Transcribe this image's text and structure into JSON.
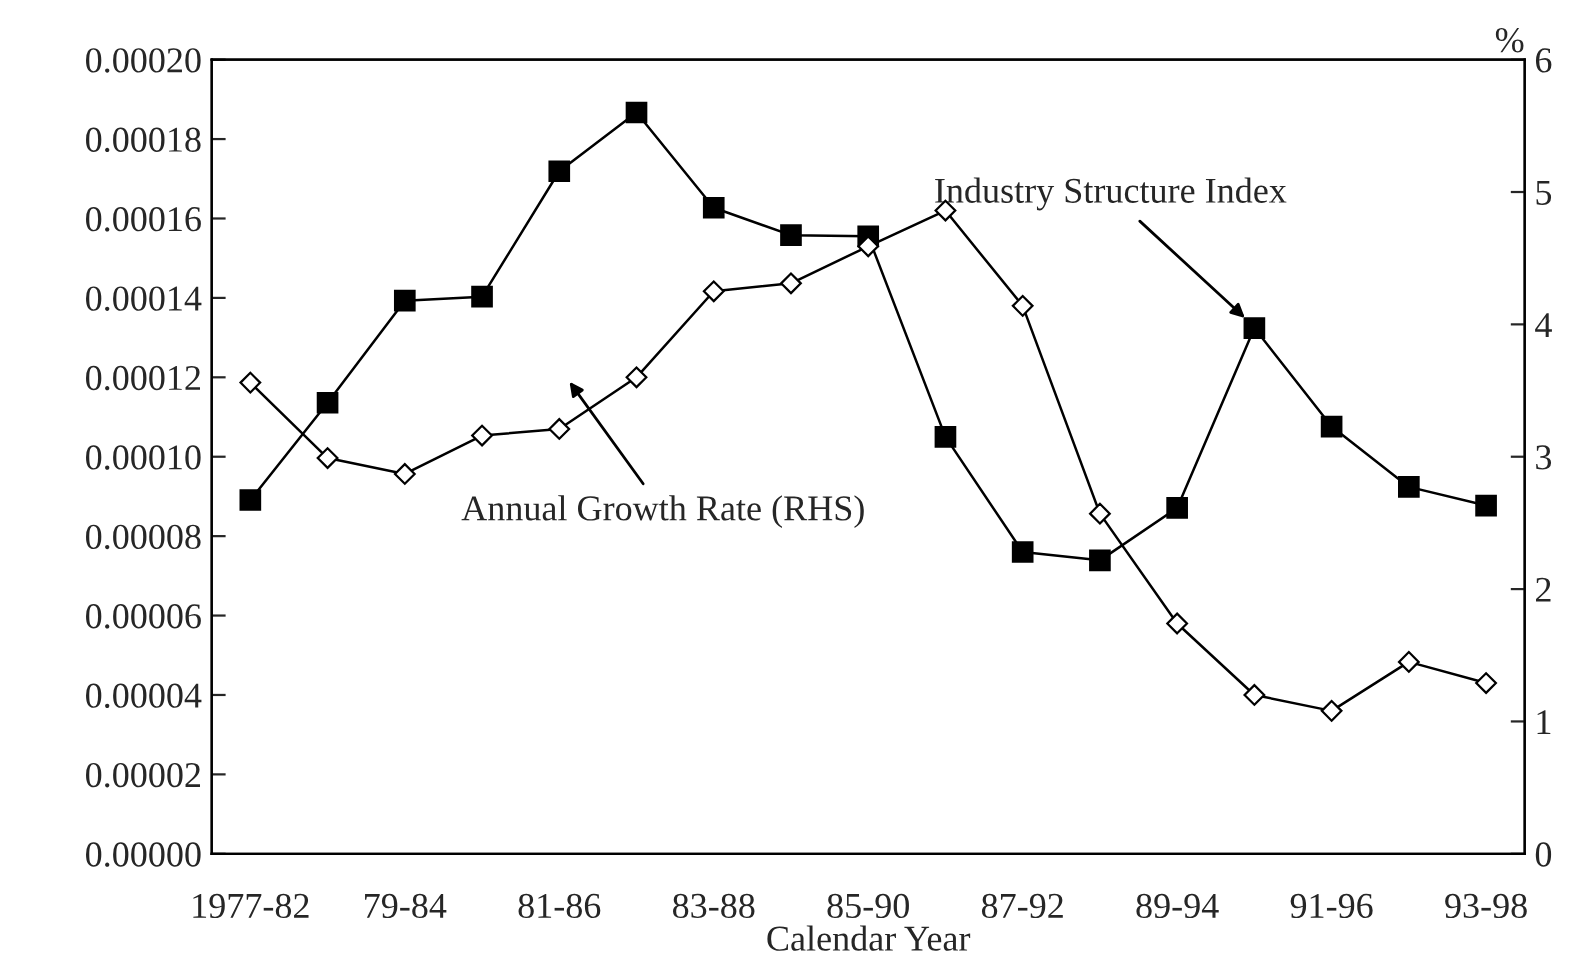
{
  "chart_data": {
    "type": "line",
    "xlabel": "Calendar Year",
    "y2label": "%",
    "categories": [
      "1977-82",
      null,
      "79-84",
      null,
      "81-86",
      null,
      "83-88",
      null,
      "85-90",
      null,
      "87-92",
      null,
      "89-94",
      null,
      "91-96",
      null,
      "93-98"
    ],
    "series": [
      {
        "name": "Industry Structure Index",
        "color": "#000000",
        "marker": "square",
        "values": [
          8.91e-05,
          0.0001136,
          0.0001393,
          0.0001403,
          0.0001719,
          0.0001867,
          0.0001627,
          0.0001558,
          0.0001555,
          0.000105,
          7.6e-05,
          7.39e-05,
          8.71e-05,
          0.0001324,
          0.0001076,
          9.24e-05,
          8.77e-05
        ]
      },
      {
        "name": "Annual Growth Rate (RHS)",
        "color": "#000000",
        "marker": "diamond",
        "axis": "y2",
        "values": [
          3.56,
          2.99,
          2.87,
          3.16,
          3.21,
          3.6,
          4.25,
          4.31,
          4.59,
          4.86,
          4.14,
          2.57,
          1.74,
          1.2,
          1.08,
          1.45,
          1.29
        ]
      }
    ],
    "ylim": [
      0,
      0.0002
    ],
    "yticks": [
      {
        "value": 0,
        "label": "0.00000"
      },
      {
        "value": 2e-05,
        "label": "0.00002"
      },
      {
        "value": 4e-05,
        "label": "0.00004"
      },
      {
        "value": 6e-05,
        "label": "0.00006"
      },
      {
        "value": 8e-05,
        "label": "0.00008"
      },
      {
        "value": 0.0001,
        "label": "0.00010"
      },
      {
        "value": 0.00012,
        "label": "0.00012"
      },
      {
        "value": 0.00014,
        "label": "0.00014"
      },
      {
        "value": 0.00016,
        "label": "0.00016"
      },
      {
        "value": 0.00018,
        "label": "0.00018"
      },
      {
        "value": 0.0002,
        "label": "0.00020"
      }
    ],
    "y2lim": [
      0,
      6
    ],
    "y2ticks": [
      0,
      1,
      2,
      3,
      4,
      5,
      6
    ],
    "grid": false,
    "legend": false,
    "line_style": "solid"
  }
}
